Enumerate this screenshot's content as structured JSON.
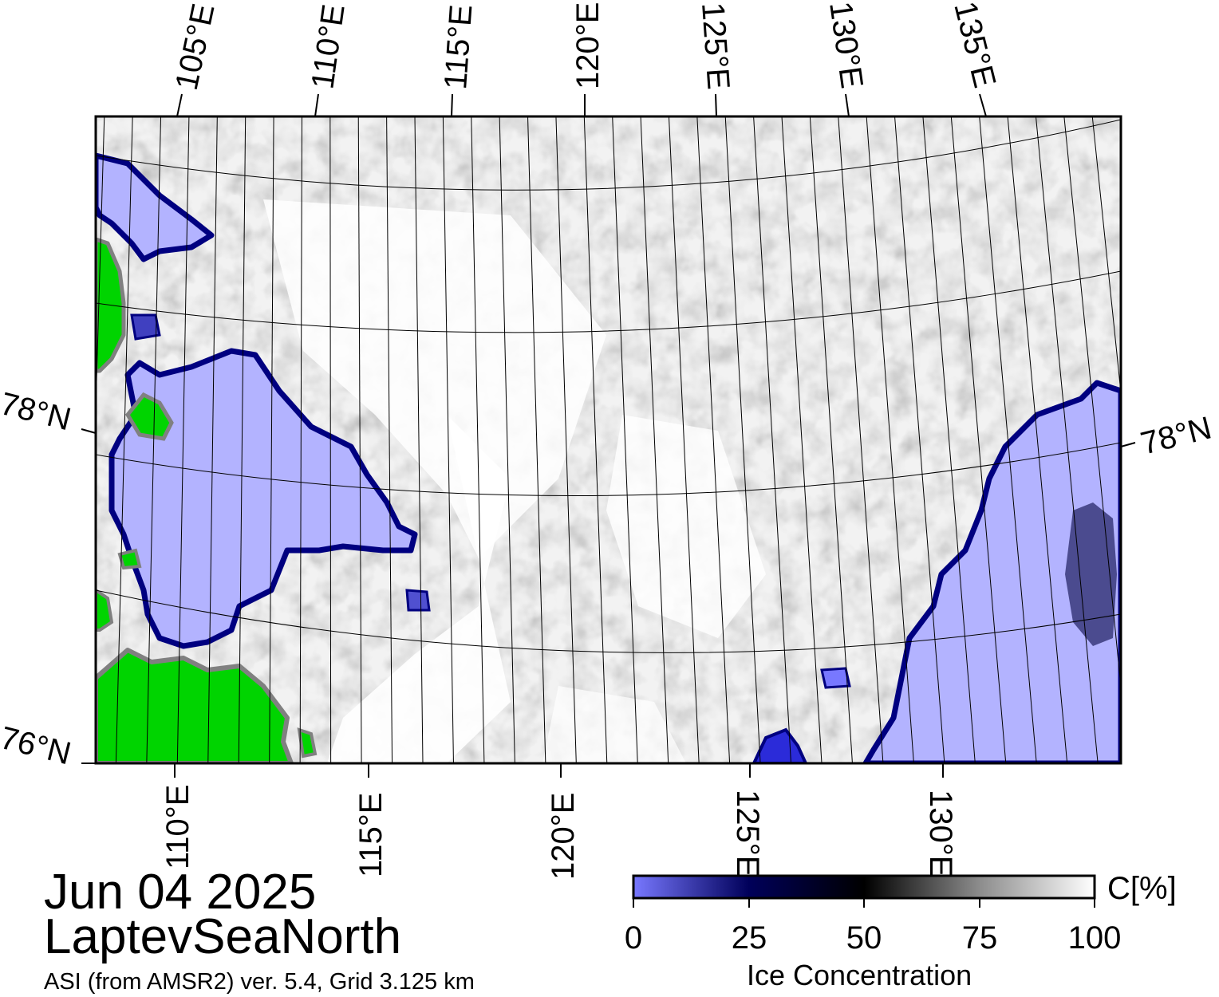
{
  "map": {
    "region_name": "LaptevSeaNorth",
    "date": "Jun 04 2025",
    "source_note": "ASI (from AMSR2) ver. 5.4,  Grid 3.125 km",
    "top_longitude_labels": [
      "105°E",
      "110°E",
      "115°E",
      "120°E",
      "125°E",
      "130°E",
      "135°E"
    ],
    "bottom_longitude_labels": [
      "110°E",
      "115°E",
      "120°E",
      "125°E",
      "130°E"
    ],
    "latitude_labels_left": [
      "78°N",
      "76°N"
    ],
    "latitude_labels_right": [
      "78°N"
    ],
    "colors": {
      "land": "#00d400",
      "land_edge": "#808080",
      "open_water": "#b3b3ff",
      "open_water_edge": "#000080",
      "ice_full": "#ffffff",
      "ice_mid": "#000000",
      "frame": "#000000",
      "graticule": "#000000"
    }
  },
  "colorbar": {
    "title": "Ice Concentration",
    "unit_label": "C[%]",
    "ticks": [
      "0",
      "25",
      "50",
      "75",
      "100"
    ],
    "stops": [
      {
        "value": 0,
        "color": "#7878ff"
      },
      {
        "value": 25,
        "color": "#00005a"
      },
      {
        "value": 50,
        "color": "#000000"
      },
      {
        "value": 75,
        "color": "#8c8c8c"
      },
      {
        "value": 100,
        "color": "#ffffff"
      }
    ]
  }
}
